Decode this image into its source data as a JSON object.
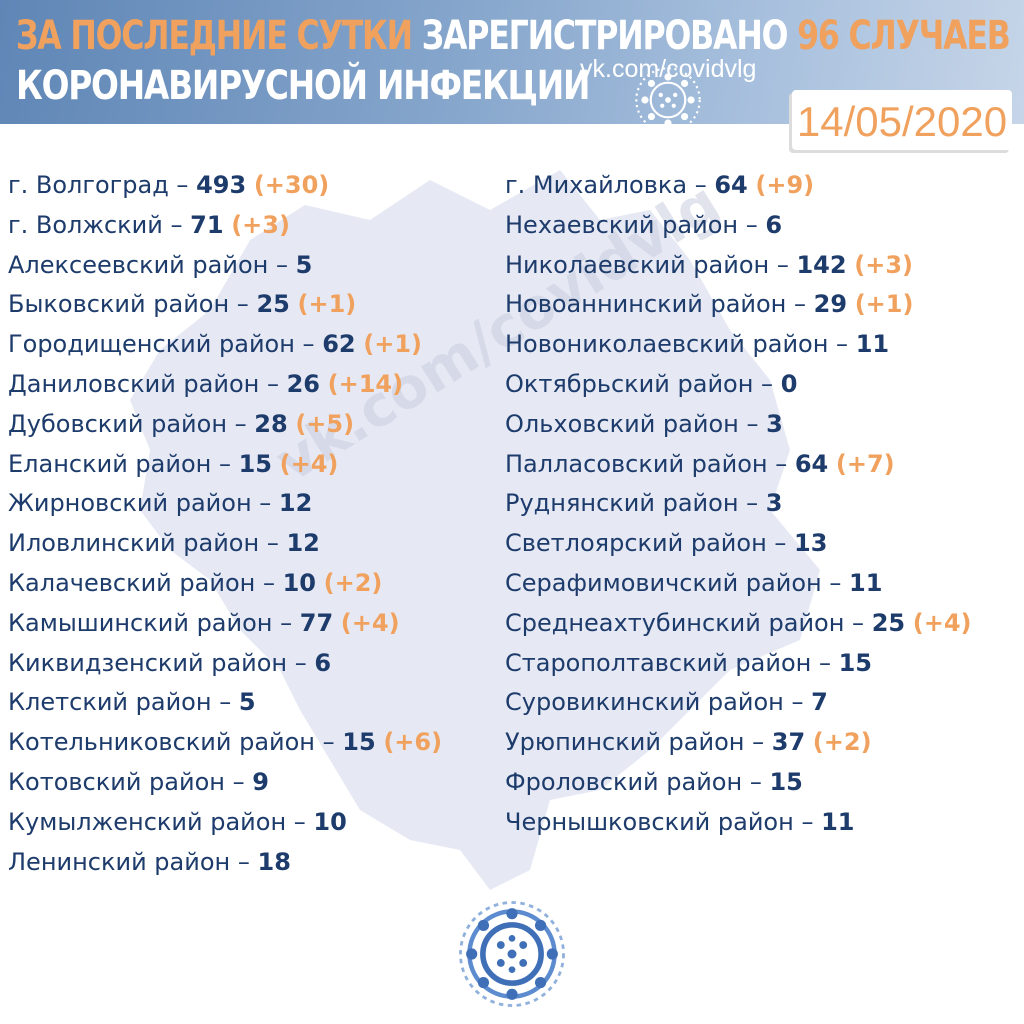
{
  "header": {
    "line1_a": "ЗА ПОСЛЕДНИЕ СУТКИ",
    "line1_b": "ЗАРЕГИСТРИРОВАНО",
    "line1_c": "96 СЛУЧАЕВ",
    "line2": "КОРОНАВИРУСНОЙ ИНФЕКЦИИ",
    "link": "vk.com/covidvlg",
    "date": "14/05/2020"
  },
  "watermark": "vk.com/covidvlg",
  "colors": {
    "orange": "#f0a15e",
    "navy": "#1d3b6b",
    "header_blue": "#6f92bf"
  },
  "left_column": [
    {
      "name": "г. Волгоград",
      "total": "493",
      "delta": "(+30)"
    },
    {
      "name": "г. Волжский",
      "total": "71",
      "delta": "(+3)"
    },
    {
      "name": "Алексеевский район",
      "total": "5",
      "delta": ""
    },
    {
      "name": "Быковский район",
      "total": "25",
      "delta": "(+1)"
    },
    {
      "name": "Городищенский район",
      "total": "62",
      "delta": "(+1)"
    },
    {
      "name": "Даниловский район",
      "total": "26",
      "delta": "(+14)"
    },
    {
      "name": "Дубовский район",
      "total": "28",
      "delta": "(+5)"
    },
    {
      "name": "Еланский район",
      "total": "15",
      "delta": "(+4)"
    },
    {
      "name": "Жирновский район",
      "total": "12",
      "delta": ""
    },
    {
      "name": "Иловлинский район",
      "total": "12",
      "delta": ""
    },
    {
      "name": "Калачевский район",
      "total": "10",
      "delta": "(+2)"
    },
    {
      "name": "Камышинский район",
      "total": "77",
      "delta": "(+4)"
    },
    {
      "name": "Киквидзенский район",
      "total": "6",
      "delta": ""
    },
    {
      "name": "Клетский район",
      "total": "5",
      "delta": ""
    },
    {
      "name": "Котельниковский район",
      "total": "15",
      "delta": "(+6)"
    },
    {
      "name": "Котовский район",
      "total": "9",
      "delta": ""
    },
    {
      "name": "Кумылженский район",
      "total": "10",
      "delta": ""
    },
    {
      "name": "Ленинский район",
      "total": "18",
      "delta": ""
    }
  ],
  "right_column": [
    {
      "name": "г. Михайловка",
      "total": "64",
      "delta": "(+9)"
    },
    {
      "name": "Нехаевский район",
      "total": "6",
      "delta": ""
    },
    {
      "name": "Николаевский район",
      "total": "142",
      "delta": "(+3)"
    },
    {
      "name": "Новоаннинский район",
      "total": "29",
      "delta": "(+1)"
    },
    {
      "name": "Новониколаевский район",
      "total": "11",
      "delta": ""
    },
    {
      "name": "Октябрьский район",
      "total": "0",
      "delta": ""
    },
    {
      "name": "Ольховский район",
      "total": "3",
      "delta": ""
    },
    {
      "name": "Палласовский район",
      "total": "64",
      "delta": "(+7)"
    },
    {
      "name": "Руднянский район",
      "total": "3",
      "delta": ""
    },
    {
      "name": "Светлоярский район",
      "total": "13",
      "delta": ""
    },
    {
      "name": "Серафимовичский район",
      "total": "11",
      "delta": ""
    },
    {
      "name": "Среднеахтубинский район",
      "total": "25",
      "delta": "(+4)"
    },
    {
      "name": " Старополтавский район",
      "total": "15",
      "delta": ""
    },
    {
      "name": "Суровикинский район",
      "total": "7",
      "delta": ""
    },
    {
      "name": "Урюпинский район",
      "total": "37",
      "delta": "(+2)"
    },
    {
      "name": "Фроловский район",
      "total": "15",
      "delta": ""
    },
    {
      "name": "Чернышковский район",
      "total": "11",
      "delta": ""
    }
  ]
}
